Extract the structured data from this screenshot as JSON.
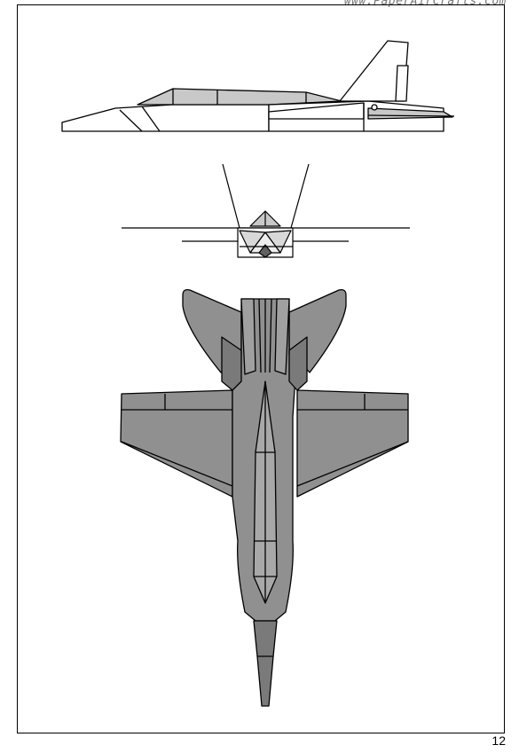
{
  "header": {
    "site_url": "www.PaperAirCrafts.com"
  },
  "footer": {
    "page_number": "12"
  },
  "colors": {
    "paper": "#ffffff",
    "line": "#000000",
    "fill_dark": "#909090",
    "fill_light": "#c8c8c8",
    "fill_tail": "#7a7a7a"
  }
}
